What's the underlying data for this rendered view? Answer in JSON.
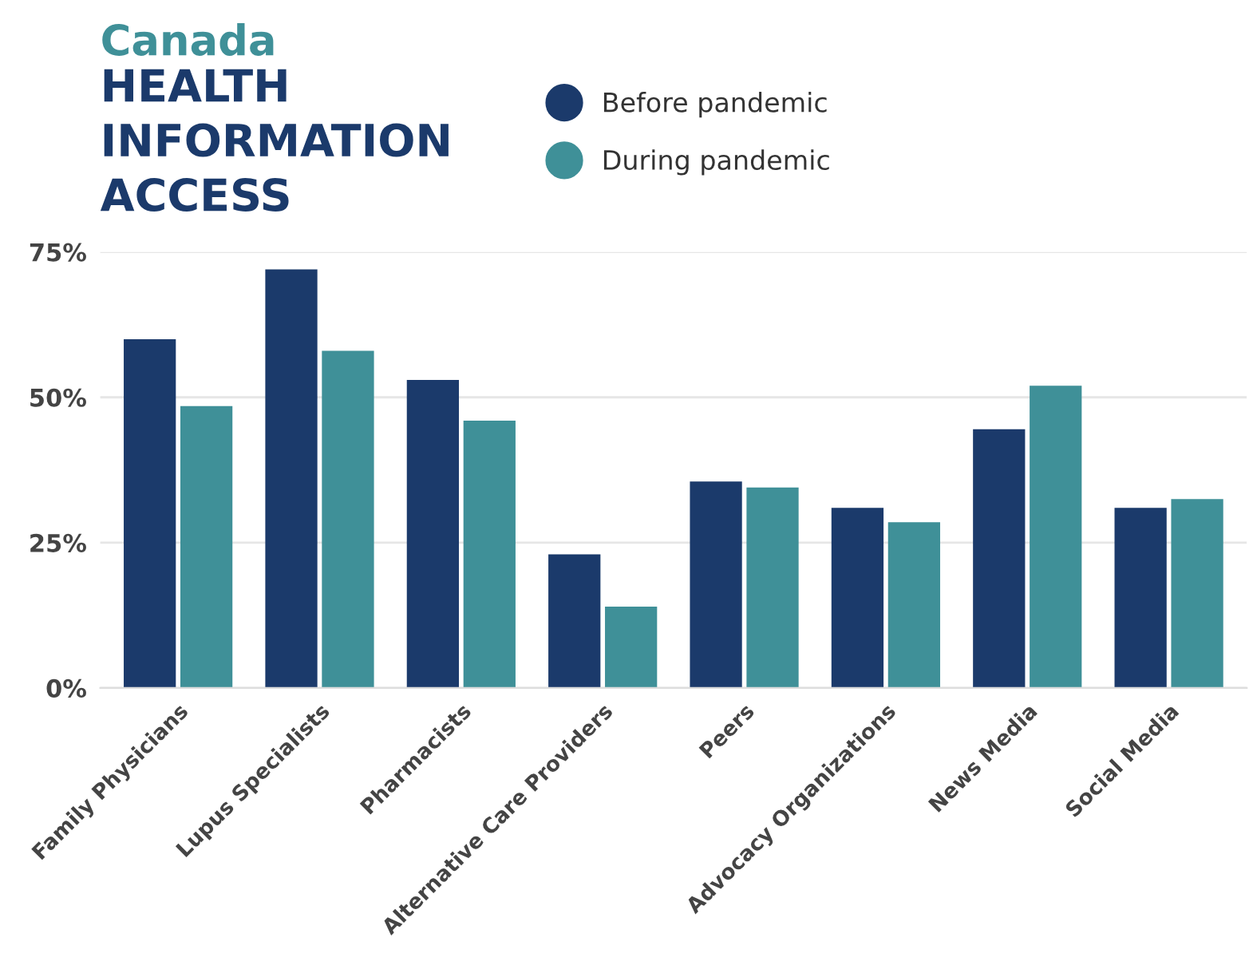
{
  "chart_data": {
    "type": "bar",
    "title": "Canada",
    "subtitle": "HEALTH\nINFORMATION\nACCESS",
    "categories": [
      "Family Physicians",
      "Lupus Specialists",
      "Pharmacists",
      "Alternative Care Providers",
      "Peers",
      "Advocacy Organizations",
      "News Media",
      "Social Media"
    ],
    "series": [
      {
        "name": "Before pandemic",
        "color": "#1b3a6b",
        "values": [
          60,
          72,
          53,
          23,
          35.5,
          31,
          44.5,
          31
        ]
      },
      {
        "name": "During pandemic",
        "color": "#3f9098",
        "values": [
          48.5,
          58,
          46,
          14,
          34.5,
          28.5,
          52,
          32.5
        ]
      }
    ],
    "ylim": [
      0,
      75
    ],
    "yticks": [
      {
        "value": 0,
        "label": "0%"
      },
      {
        "value": 25,
        "label": "25%"
      },
      {
        "value": 50,
        "label": "50%"
      },
      {
        "value": 75,
        "label": "75%"
      }
    ],
    "grid": "y",
    "legend": "top",
    "marker": "circle"
  }
}
